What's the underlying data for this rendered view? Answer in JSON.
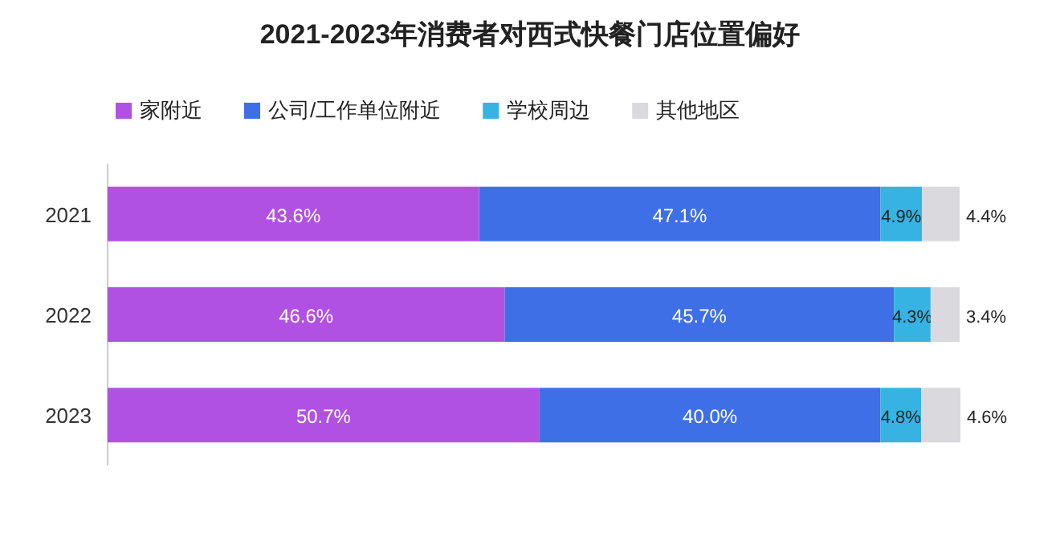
{
  "chart_data": {
    "type": "bar",
    "orientation": "horizontal",
    "stacked": true,
    "title": "2021-2023年消费者对西式快餐门店位置偏好",
    "categories": [
      "2021",
      "2022",
      "2023"
    ],
    "legend": "top left",
    "series": [
      {
        "name": "家附近",
        "color": "#b151e3",
        "values": [
          43.6,
          46.6,
          50.7
        ],
        "value_labels": [
          "43.6%",
          "46.6%",
          "50.7%"
        ]
      },
      {
        "name": "公司/工作单位附近",
        "color": "#3f6fe6",
        "values": [
          47.1,
          45.7,
          40.0
        ],
        "value_labels": [
          "47.1%",
          "45.7%",
          "40.0%"
        ]
      },
      {
        "name": "学校周边",
        "color": "#36b3e3",
        "values": [
          4.9,
          4.3,
          4.8
        ],
        "value_labels": [
          "4.9%",
          "4.3%",
          "4.8%"
        ]
      },
      {
        "name": "其他地区",
        "color": "#d9d9de",
        "values": [
          4.4,
          3.4,
          4.6
        ],
        "value_labels": [
          "4.4%",
          "3.4%",
          "4.6%"
        ]
      }
    ]
  }
}
